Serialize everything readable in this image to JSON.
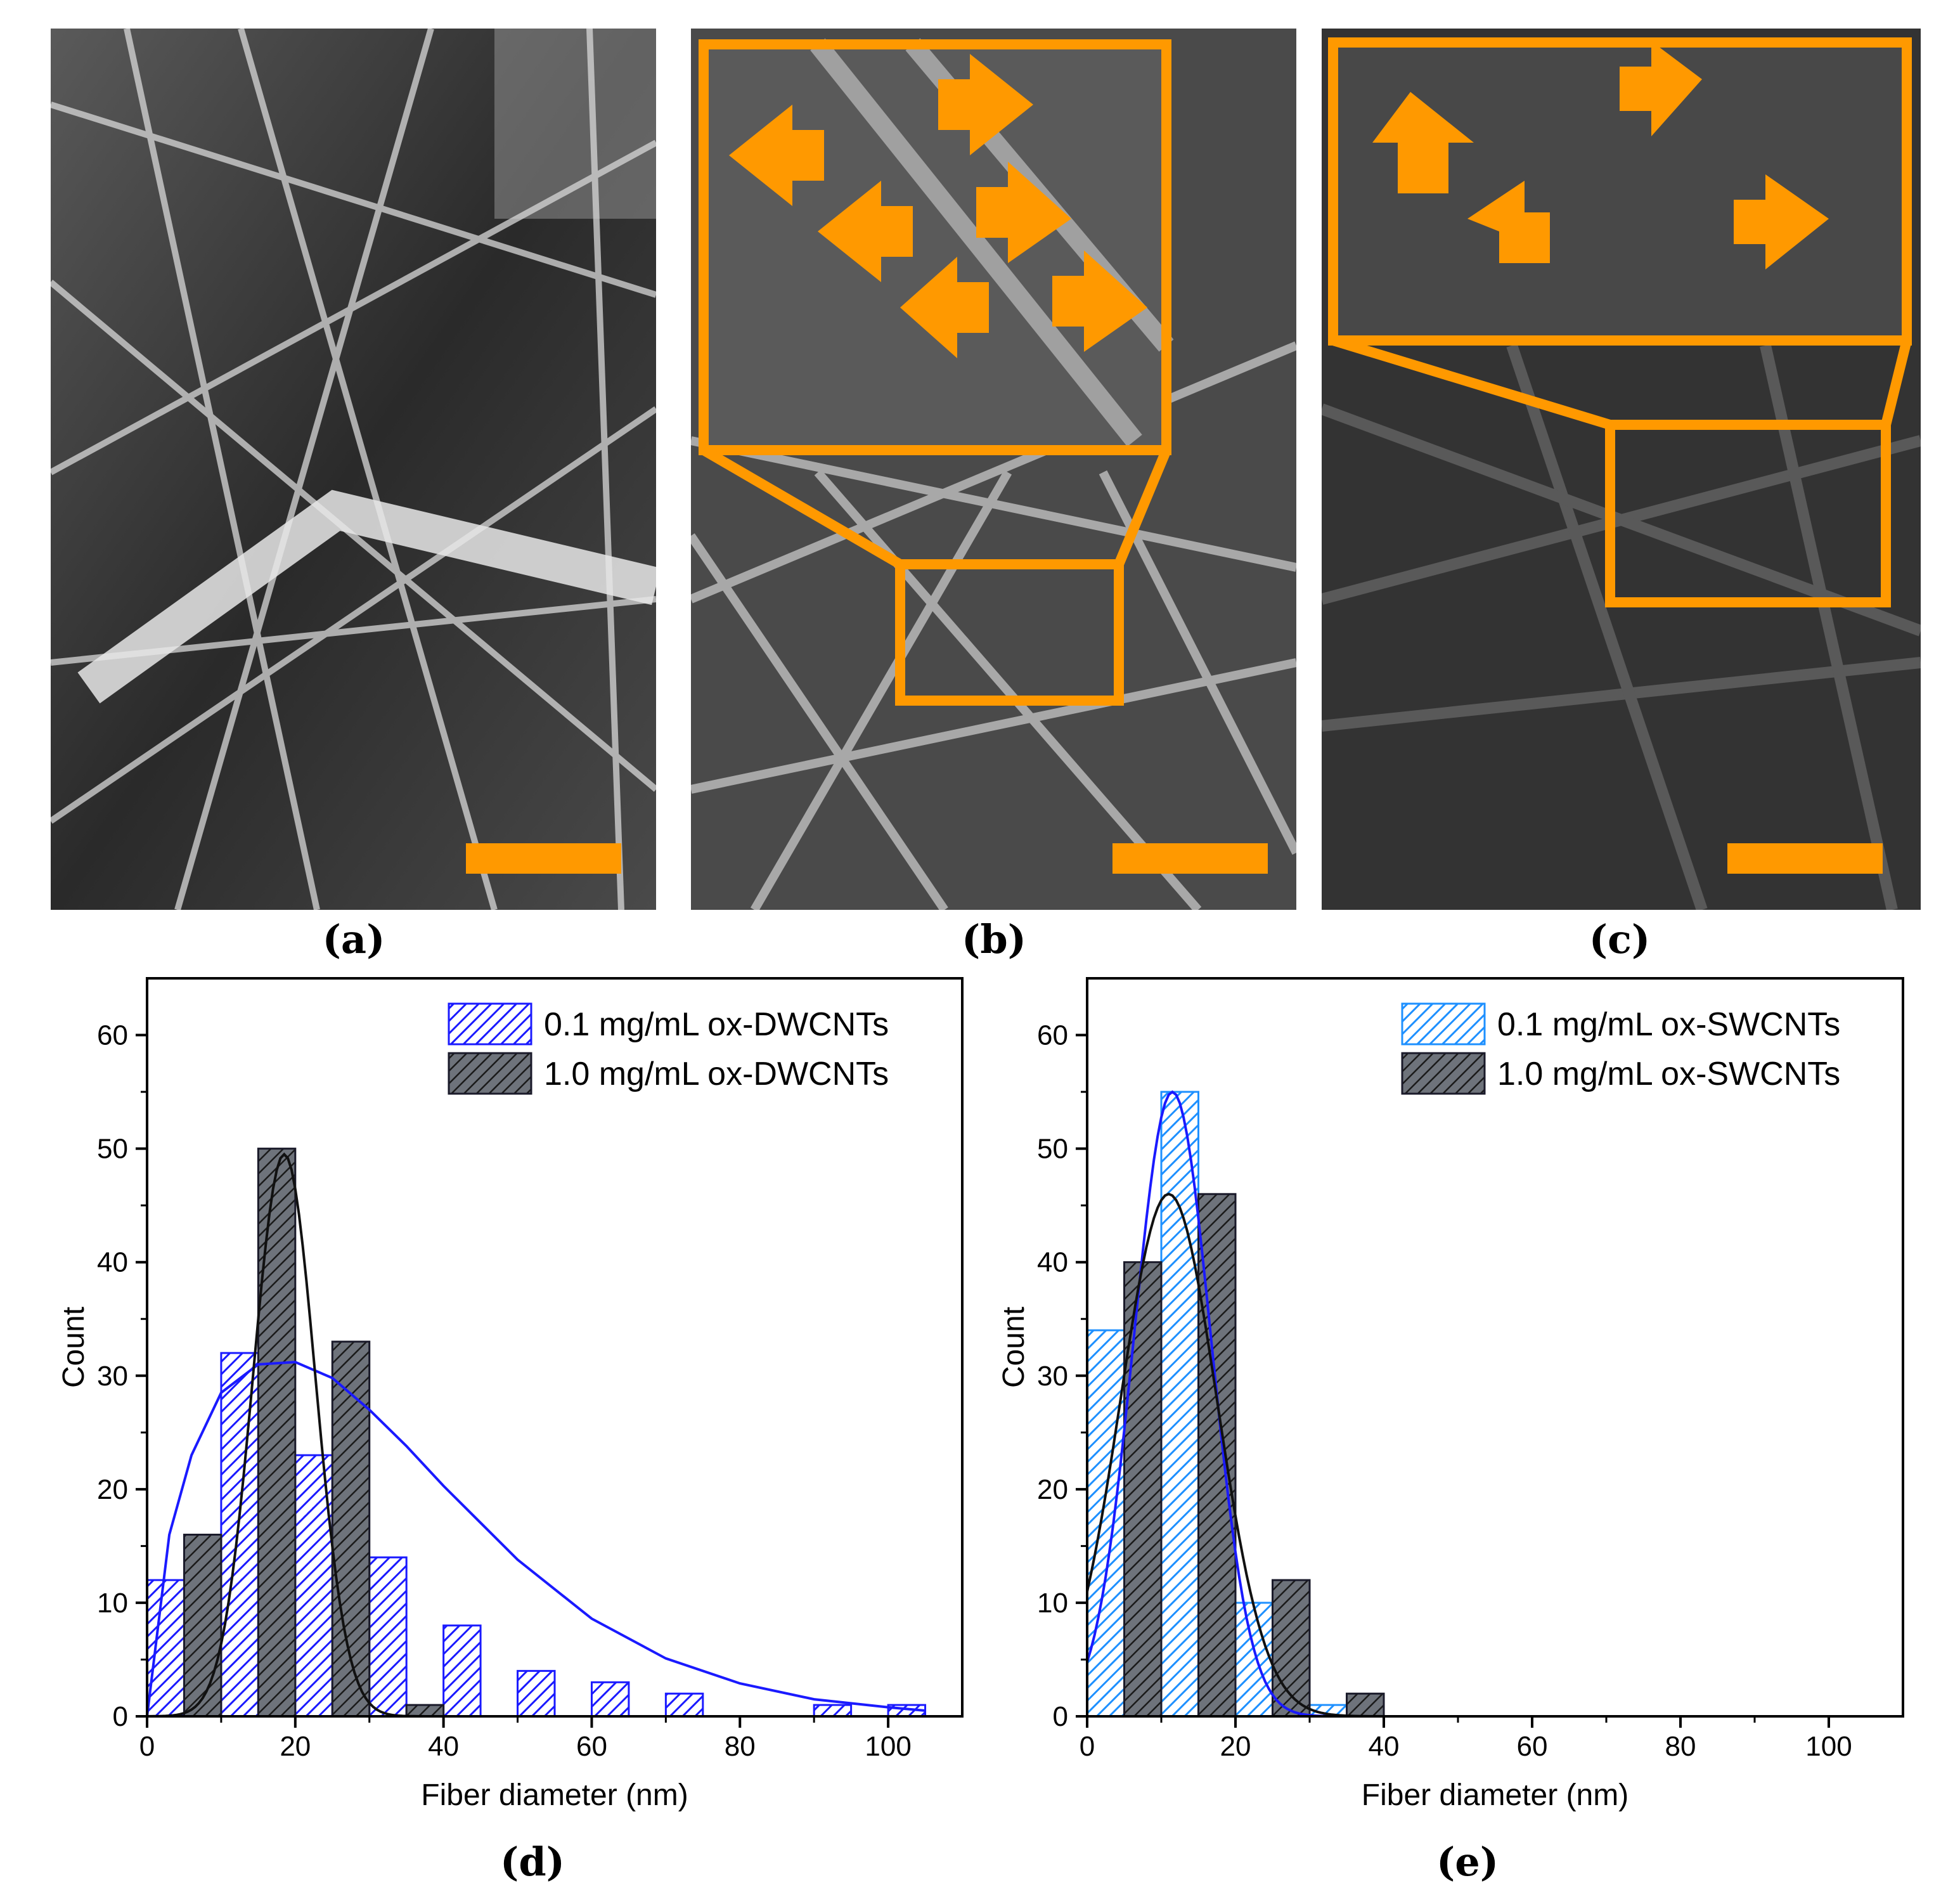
{
  "panel_labels": {
    "a": "(a)",
    "b": "(b)",
    "c": "(c)",
    "d": "(d)",
    "e": "(e)"
  },
  "colors": {
    "accent": "#FF9900",
    "series_thin": "#1a1aff",
    "series_thin_e": "#1e90ff",
    "series_thick": "#555a62"
  },
  "chart_data": [
    {
      "panel": "(d)",
      "type": "bar",
      "xlabel": "Fiber diameter (nm)",
      "ylabel": "Count",
      "xlim": [
        0,
        110
      ],
      "ylim": [
        0,
        65
      ],
      "xticks": [
        0,
        20,
        40,
        60,
        80,
        100
      ],
      "yticks": [
        0,
        10,
        20,
        30,
        40,
        50,
        60
      ],
      "legend_position": "top-right",
      "series": [
        {
          "name": "0.1 mg/mL ox-DWCNTs",
          "bin_starts": [
            0,
            10,
            20,
            30,
            40,
            50,
            60,
            70,
            90,
            100
          ],
          "bin_width": 5,
          "values": [
            12,
            32,
            23,
            14,
            8,
            4,
            3,
            2,
            1,
            1
          ]
        },
        {
          "name": "1.0 mg/mL ox-DWCNTs",
          "bin_starts": [
            5,
            15,
            25,
            35
          ],
          "bin_width": 5,
          "values": [
            16,
            50,
            33,
            1
          ]
        }
      ],
      "fits": [
        {
          "series": "0.1 mg/mL ox-DWCNTs",
          "kind": "lognormal",
          "x": [
            0,
            3,
            6,
            10,
            15,
            20,
            25,
            30,
            35,
            40,
            50,
            60,
            70,
            80,
            90,
            100,
            105
          ],
          "y": [
            0,
            16,
            23,
            28.5,
            31,
            31.2,
            29.8,
            27,
            23.8,
            20.3,
            13.8,
            8.6,
            5.1,
            2.9,
            1.5,
            0.8,
            0.5
          ]
        },
        {
          "series": "1.0 mg/mL ox-DWCNTs",
          "kind": "normal",
          "mean": 18.5,
          "sd": 4.2,
          "peak": 49.5
        }
      ]
    },
    {
      "panel": "(e)",
      "type": "bar",
      "xlabel": "Fiber diameter (nm)",
      "ylabel": "Count",
      "xlim": [
        0,
        110
      ],
      "ylim": [
        0,
        65
      ],
      "xticks": [
        0,
        20,
        40,
        60,
        80,
        100
      ],
      "yticks": [
        0,
        10,
        20,
        30,
        40,
        50,
        60
      ],
      "legend_position": "top-right",
      "series": [
        {
          "name": "0.1 mg/mL ox-SWCNTs",
          "bin_starts": [
            0,
            10,
            20,
            30
          ],
          "bin_width": 5,
          "values": [
            34,
            55,
            10,
            1
          ]
        },
        {
          "name": "1.0 mg/mL ox-SWCNTs",
          "bin_starts": [
            5,
            15,
            25,
            35
          ],
          "bin_width": 5,
          "values": [
            40,
            46,
            12,
            2
          ]
        }
      ],
      "fits": [
        {
          "series": "0.1 mg/mL ox-SWCNTs",
          "kind": "normal",
          "mean": 11.5,
          "sd": 5.2,
          "peak": 55
        },
        {
          "series": "1.0 mg/mL ox-SWCNTs",
          "kind": "normal",
          "mean": 11,
          "sd": 6.5,
          "peak": 46
        }
      ]
    }
  ]
}
